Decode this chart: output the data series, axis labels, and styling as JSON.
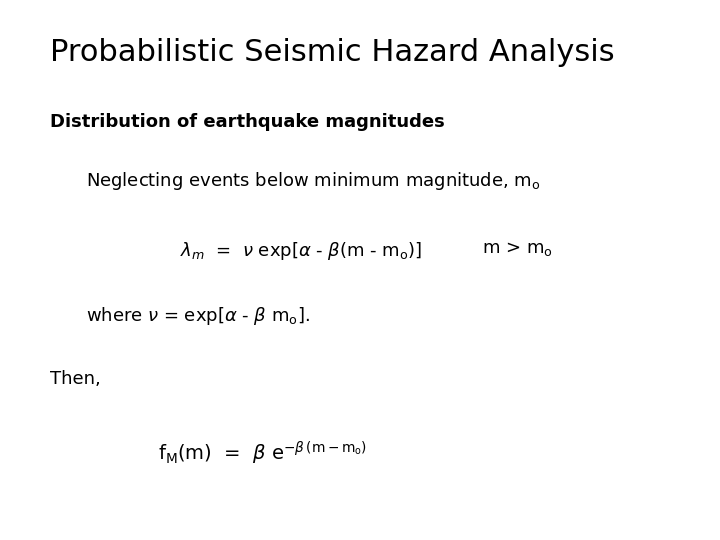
{
  "title": "Probabilistic Seismic Hazard Analysis",
  "subtitle": "Distribution of earthquake magnitudes",
  "background_color": "#ffffff",
  "text_color": "#000000",
  "title_fontsize": 22,
  "subtitle_fontsize": 13,
  "body_fontsize": 13,
  "figsize": [
    7.2,
    5.4
  ],
  "dpi": 100
}
